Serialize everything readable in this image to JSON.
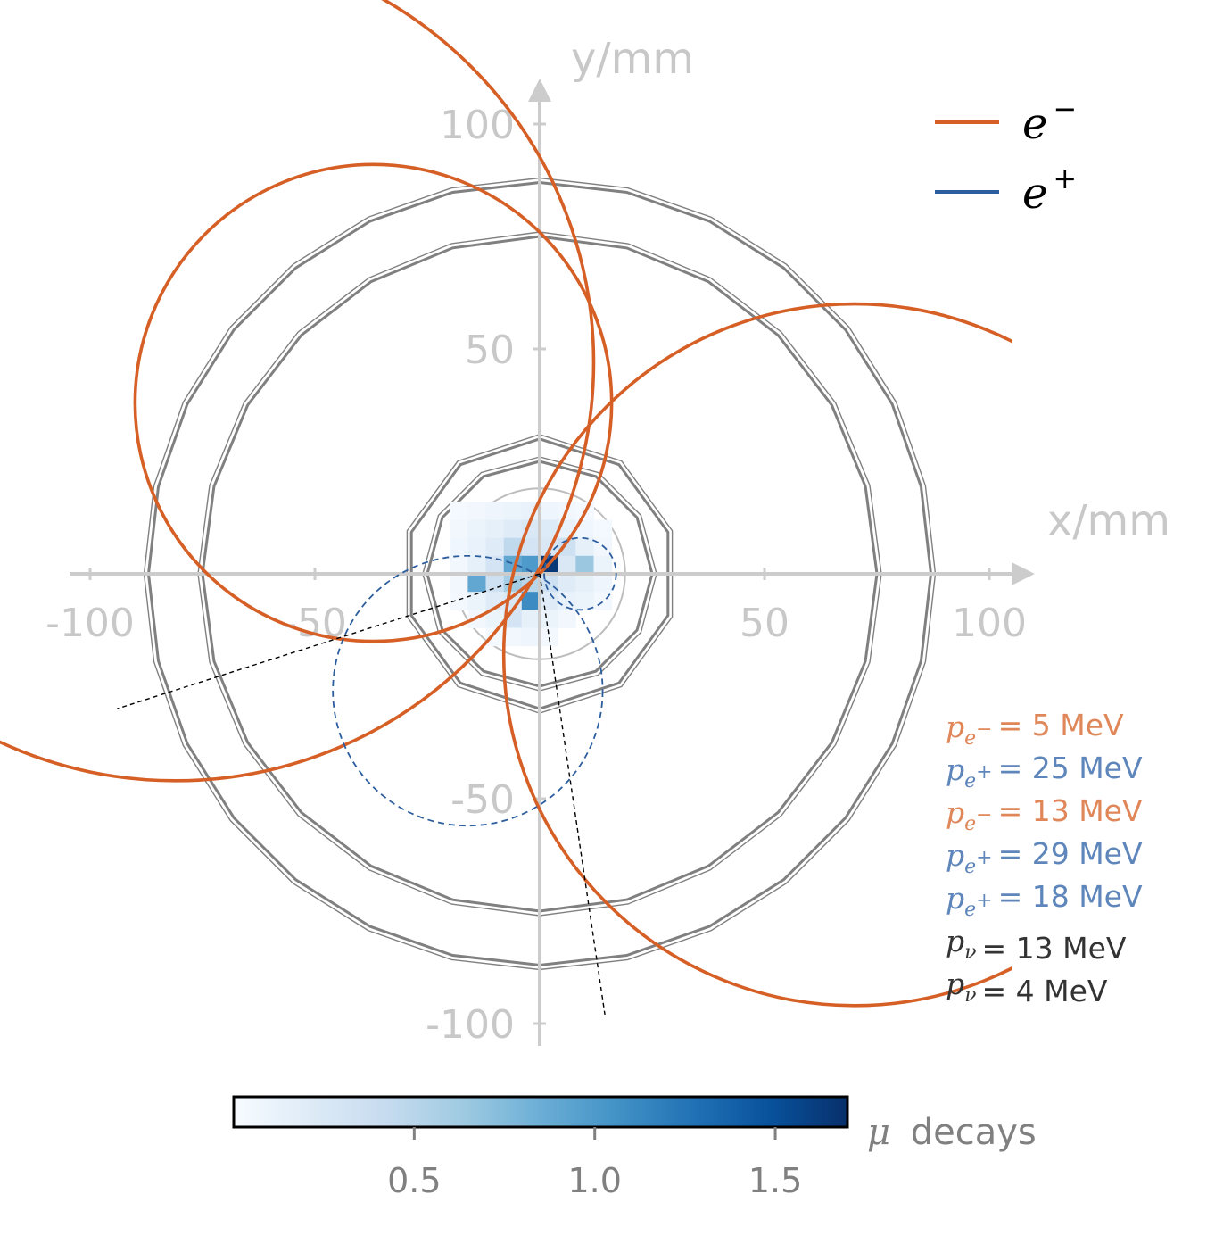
{
  "chart_data": {
    "type": "scatter",
    "title": "",
    "xlabel": "x/mm",
    "ylabel": "y/mm",
    "xlim": [
      -105,
      110
    ],
    "ylim": [
      -105,
      115
    ],
    "x_ticks": [
      -100,
      -50,
      50,
      100
    ],
    "x_tick_labels": [
      "-100",
      "-50",
      "50",
      "100"
    ],
    "y_ticks": [
      -100,
      -50,
      50,
      100
    ],
    "y_tick_labels": [
      "-100",
      "-50",
      "50",
      "100"
    ],
    "grid": false,
    "legend": {
      "placement": "top-right",
      "entries": [
        {
          "symbol": "e",
          "sup": "−",
          "color": "#d65f26"
        },
        {
          "symbol": "e",
          "sup": "+",
          "color": "#2c5d9e"
        }
      ]
    },
    "detector": {
      "target_radius_mm": 19,
      "inner_layers": [
        {
          "sides": 10,
          "radius_mm": 30,
          "rotation_deg": 0
        },
        {
          "sides": 10,
          "radius_mm": 31,
          "rotation_deg": 0
        },
        {
          "sides": 12,
          "radius_mm": 25,
          "rotation_deg": 0
        },
        {
          "sides": 12,
          "radius_mm": 26,
          "rotation_deg": 0
        }
      ],
      "outer_layers": [
        {
          "sides": 24,
          "radius_mm": 75,
          "rotation_deg": 0
        },
        {
          "sides": 24,
          "radius_mm": 76,
          "rotation_deg": 0
        },
        {
          "sides": 28,
          "radius_mm": 87,
          "rotation_deg": 0
        },
        {
          "sides": 28,
          "radius_mm": 88,
          "rotation_deg": 0
        }
      ],
      "color": "#808080"
    },
    "series": [
      {
        "name": "e−",
        "kind": "circle",
        "cx": -37,
        "cy": 38,
        "r": 53,
        "color": "#d65f26",
        "style": "solid"
      },
      {
        "name": "e−",
        "kind": "circle",
        "cx": -81,
        "cy": 47,
        "r": 93,
        "color": "#d65f26",
        "style": "solid"
      },
      {
        "name": "e−",
        "kind": "circle",
        "cx": 70,
        "cy": -18,
        "r": 78,
        "color": "#d65f26",
        "style": "solid"
      },
      {
        "name": "e+",
        "kind": "circle",
        "cx": -16,
        "cy": -26,
        "r": 30,
        "color": "#2c5d9e",
        "style": "dashed"
      },
      {
        "name": "e+",
        "kind": "circle",
        "cx": 9,
        "cy": 0,
        "r": 8,
        "color": "#2c5d9e",
        "style": "dashed"
      },
      {
        "name": "ν",
        "kind": "line",
        "x": [
          0,
          -94
        ],
        "y": [
          0,
          -30
        ],
        "color": "#000000",
        "style": "dashed"
      },
      {
        "name": "ν",
        "kind": "line",
        "x": [
          0,
          14.5
        ],
        "y": [
          0,
          -98
        ],
        "color": "#000000",
        "style": "dashed"
      }
    ],
    "heatmap": {
      "bin_mm": 4,
      "colormap": "Blues",
      "vmax": 1.7,
      "cells": [
        [
          -18,
          14,
          0.03
        ],
        [
          -14,
          14,
          0.05
        ],
        [
          -10,
          14,
          0.08
        ],
        [
          -6,
          14,
          0.1
        ],
        [
          -2,
          14,
          0.12
        ],
        [
          2,
          14,
          0.08
        ],
        [
          6,
          14,
          0.05
        ],
        [
          10,
          14,
          0.03
        ],
        [
          -18,
          10,
          0.05
        ],
        [
          -14,
          10,
          0.1
        ],
        [
          -10,
          10,
          0.15
        ],
        [
          -6,
          10,
          0.2
        ],
        [
          -2,
          10,
          0.25
        ],
        [
          2,
          10,
          0.22
        ],
        [
          6,
          10,
          0.12
        ],
        [
          10,
          10,
          0.06
        ],
        [
          14,
          10,
          0.03
        ],
        [
          -18,
          6,
          0.06
        ],
        [
          -14,
          6,
          0.12
        ],
        [
          -10,
          6,
          0.2
        ],
        [
          -6,
          6,
          0.45
        ],
        [
          -2,
          6,
          0.3
        ],
        [
          2,
          6,
          0.25
        ],
        [
          6,
          6,
          0.35
        ],
        [
          10,
          6,
          0.15
        ],
        [
          14,
          6,
          0.05
        ],
        [
          -18,
          2,
          0.05
        ],
        [
          -14,
          2,
          0.15
        ],
        [
          -10,
          2,
          0.3
        ],
        [
          -6,
          2,
          0.9
        ],
        [
          -2,
          2,
          1.0
        ],
        [
          2,
          2,
          1.65
        ],
        [
          6,
          2,
          0.25
        ],
        [
          10,
          2,
          0.65
        ],
        [
          14,
          2,
          0.1
        ],
        [
          -18,
          -2,
          0.05
        ],
        [
          -14,
          -2,
          0.9
        ],
        [
          -10,
          -2,
          0.35
        ],
        [
          -6,
          -2,
          0.6
        ],
        [
          -2,
          -2,
          0.5
        ],
        [
          2,
          -2,
          0.35
        ],
        [
          6,
          -2,
          0.2
        ],
        [
          10,
          -2,
          0.15
        ],
        [
          14,
          -2,
          0.08
        ],
        [
          -18,
          -6,
          0.04
        ],
        [
          -14,
          -6,
          0.1
        ],
        [
          -10,
          -6,
          0.2
        ],
        [
          -6,
          -6,
          0.25
        ],
        [
          -2,
          -6,
          1.1
        ],
        [
          2,
          -6,
          0.2
        ],
        [
          6,
          -6,
          0.12
        ],
        [
          10,
          -6,
          0.1
        ],
        [
          14,
          -6,
          0.04
        ],
        [
          -14,
          -10,
          0.05
        ],
        [
          -10,
          -10,
          0.1
        ],
        [
          -6,
          -10,
          0.3
        ],
        [
          -2,
          -10,
          0.15
        ],
        [
          2,
          -10,
          0.1
        ],
        [
          6,
          -10,
          0.05
        ],
        [
          -10,
          -14,
          0.03
        ],
        [
          -6,
          -14,
          0.05
        ],
        [
          -2,
          -14,
          0.08
        ],
        [
          2,
          -14,
          0.04
        ]
      ]
    },
    "colorbar": {
      "label_symbol": "μ",
      "label_text": "decays",
      "ticks": [
        0.5,
        1.0,
        1.5
      ],
      "tick_labels": [
        "0.5",
        "1.0",
        "1.5"
      ],
      "range": [
        0,
        1.7
      ]
    },
    "annotations": [
      {
        "sym": "p",
        "sub": "e",
        "subsup": "−",
        "text": "= 5 MeV",
        "color": "#e0875a"
      },
      {
        "sym": "p",
        "sub": "e",
        "subsup": "+",
        "text": "= 25 MeV",
        "color": "#5e86bb"
      },
      {
        "sym": "p",
        "sub": "e",
        "subsup": "−",
        "text": "= 13 MeV",
        "color": "#e0875a"
      },
      {
        "sym": "p",
        "sub": "e",
        "subsup": "+",
        "text": "= 29 MeV",
        "color": "#5e86bb"
      },
      {
        "sym": "p",
        "sub": "e",
        "subsup": "+",
        "text": "= 18 MeV",
        "color": "#5e86bb"
      },
      {
        "sym": "p",
        "sub": "ν",
        "subsup": "",
        "text": "= 13 MeV",
        "color": "#333333"
      },
      {
        "sym": "p",
        "sub": "ν",
        "subsup": "",
        "text": "= 4 MeV",
        "color": "#333333"
      }
    ]
  }
}
